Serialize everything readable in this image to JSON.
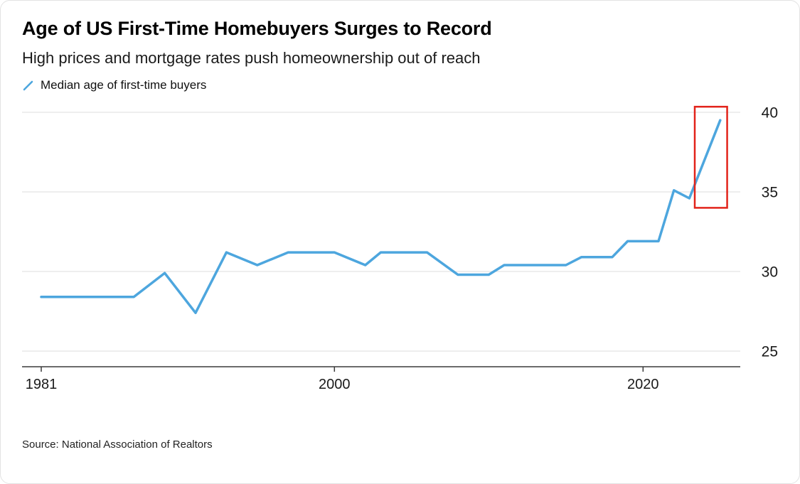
{
  "header": {
    "title": "Age of US First-Time Homebuyers Surges to Record",
    "subtitle": "High prices and mortgage rates push homeownership out of reach"
  },
  "legend": {
    "label": "Median age of first-time buyers",
    "marker_color": "#4da6de"
  },
  "source": "Source: National Association of Realtors",
  "chart_data": {
    "type": "line",
    "title": "Age of US First-Time Homebuyers Surges to Record",
    "subtitle": "High prices and mortgage rates push homeownership out of reach",
    "series": [
      {
        "name": "Median age of first-time buyers",
        "points": [
          [
            1981,
            28.4
          ],
          [
            1987,
            28.4
          ],
          [
            1989,
            29.9
          ],
          [
            1991,
            27.4
          ],
          [
            1993,
            31.2
          ],
          [
            1995,
            30.4
          ],
          [
            1997,
            31.2
          ],
          [
            2000,
            31.2
          ],
          [
            2002,
            30.4
          ],
          [
            2003,
            31.2
          ],
          [
            2006,
            31.2
          ],
          [
            2008,
            29.8
          ],
          [
            2010,
            29.8
          ],
          [
            2011,
            30.4
          ],
          [
            2015,
            30.4
          ],
          [
            2016,
            30.9
          ],
          [
            2018,
            30.9
          ],
          [
            2019,
            31.9
          ],
          [
            2021,
            31.9
          ],
          [
            2022,
            35.1
          ],
          [
            2023,
            34.6
          ],
          [
            2025,
            39.5
          ]
        ]
      }
    ],
    "xlabel": "",
    "ylabel": "",
    "x_ticks": [
      1981,
      2000,
      2020
    ],
    "y_ticks": [
      40,
      35,
      30,
      25
    ],
    "xlim": [
      1979.8,
      2025.6
    ],
    "ylim": [
      25,
      40
    ],
    "grid": "horizontal",
    "y_axis_side": "right",
    "legend_position": "top-left",
    "line_color": "#4da6de",
    "grid_color": "#dcdcdc",
    "axis_color": "#3a3a3a",
    "tick_label_color": "#1a1a1a",
    "annotation_box": {
      "color": "#e2231a",
      "x1": 2023.35,
      "x2": 2025.45,
      "y1": 34.0,
      "y2": 40.35
    }
  }
}
